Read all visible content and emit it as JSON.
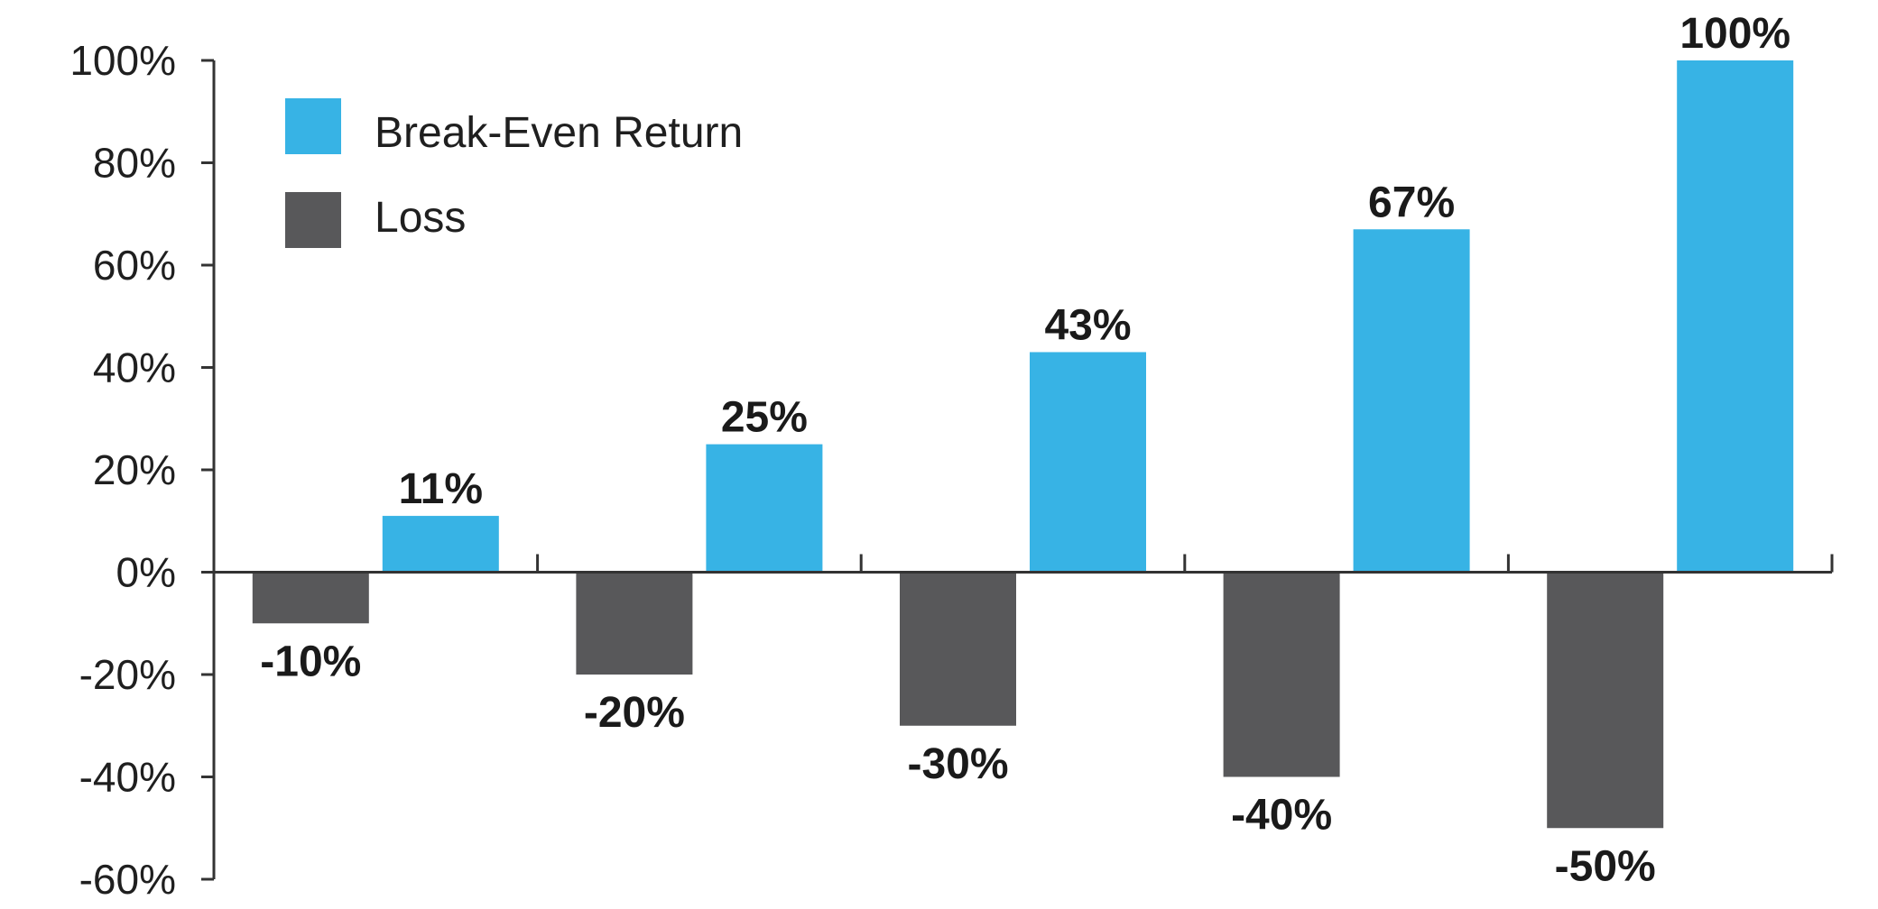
{
  "chart_data": {
    "type": "bar",
    "categories": [
      "",
      "",
      "",
      "",
      ""
    ],
    "series": [
      {
        "name": "Loss",
        "color": "#58585a",
        "values": [
          -10,
          -20,
          -30,
          -40,
          -50
        ],
        "labels": [
          "-10%",
          "-20%",
          "-30%",
          "-40%",
          "-50%"
        ]
      },
      {
        "name": "Break-Even Return",
        "color": "#37b3e5",
        "values": [
          11,
          25,
          43,
          67,
          100
        ],
        "labels": [
          "11%",
          "25%",
          "43%",
          "67%",
          "100%"
        ]
      }
    ],
    "ylim": [
      -60,
      100
    ],
    "yticks": [
      100,
      80,
      60,
      40,
      20,
      0,
      -20,
      -40,
      -60
    ],
    "ytick_labels": [
      "100%",
      "80%",
      "60%",
      "40%",
      "20%",
      "0%",
      "-20%",
      "-40%",
      "-60%"
    ],
    "legend": {
      "placement": "top-left",
      "entries": [
        {
          "label": "Break-Even Return",
          "color": "#37b3e5"
        },
        {
          "label": "Loss",
          "color": "#58585a"
        }
      ]
    },
    "grid": false,
    "title": "",
    "xlabel": "",
    "ylabel": ""
  }
}
